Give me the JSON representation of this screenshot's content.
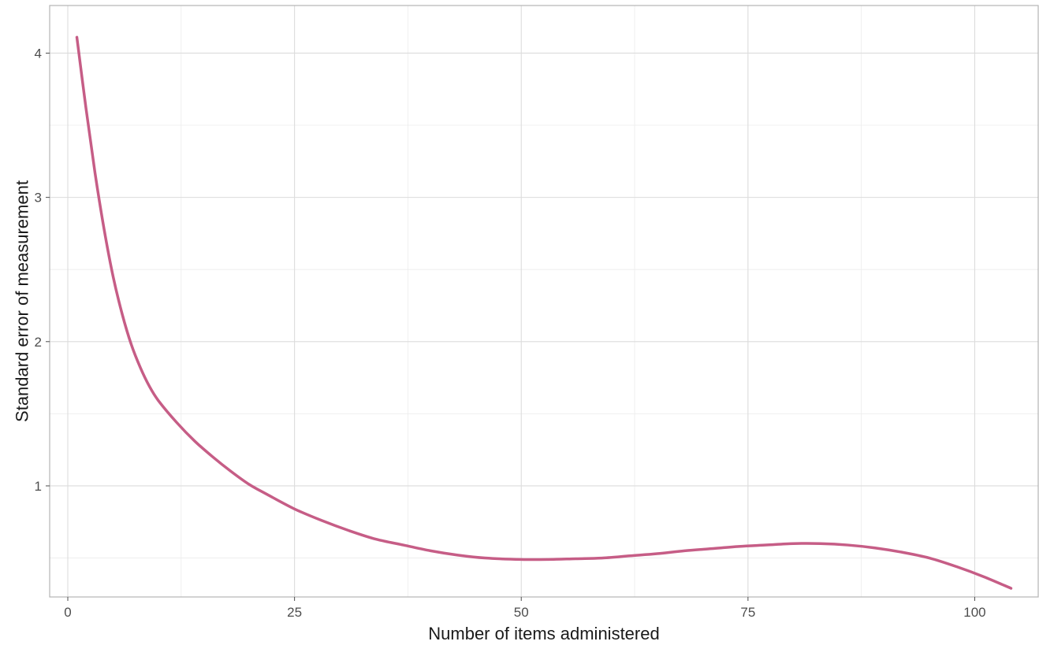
{
  "chart_data": {
    "type": "line",
    "title": "",
    "xlabel": "Number of items administered",
    "ylabel": "Standard error of measurement",
    "xlim": [
      -2,
      107
    ],
    "ylim": [
      0.23,
      4.33
    ],
    "x_ticks": [
      0,
      25,
      50,
      75,
      100
    ],
    "x_tick_labels": [
      "0",
      "25",
      "50",
      "75",
      "100"
    ],
    "y_ticks": [
      1,
      2,
      3,
      4
    ],
    "y_tick_labels": [
      "1",
      "2",
      "3",
      "4"
    ],
    "grid": true,
    "legend": "none",
    "line_color": "#c65d86",
    "series": [
      {
        "x": [
          1,
          2,
          3,
          4,
          5,
          6,
          7,
          8,
          9,
          10,
          12,
          14,
          16,
          18,
          20,
          22,
          25,
          28,
          31,
          34,
          37,
          40,
          43,
          46,
          50,
          53,
          56,
          59,
          62,
          65,
          68,
          71,
          74,
          77,
          80,
          83,
          86,
          89,
          92,
          95,
          98,
          101,
          104
        ],
        "y": [
          4.11,
          3.62,
          3.17,
          2.78,
          2.45,
          2.19,
          1.98,
          1.82,
          1.69,
          1.59,
          1.44,
          1.31,
          1.2,
          1.1,
          1.01,
          0.94,
          0.84,
          0.76,
          0.69,
          0.63,
          0.59,
          0.55,
          0.52,
          0.5,
          0.49,
          0.49,
          0.495,
          0.5,
          0.515,
          0.53,
          0.55,
          0.565,
          0.58,
          0.59,
          0.6,
          0.6,
          0.59,
          0.57,
          0.54,
          0.5,
          0.44,
          0.37,
          0.29
        ]
      }
    ]
  }
}
